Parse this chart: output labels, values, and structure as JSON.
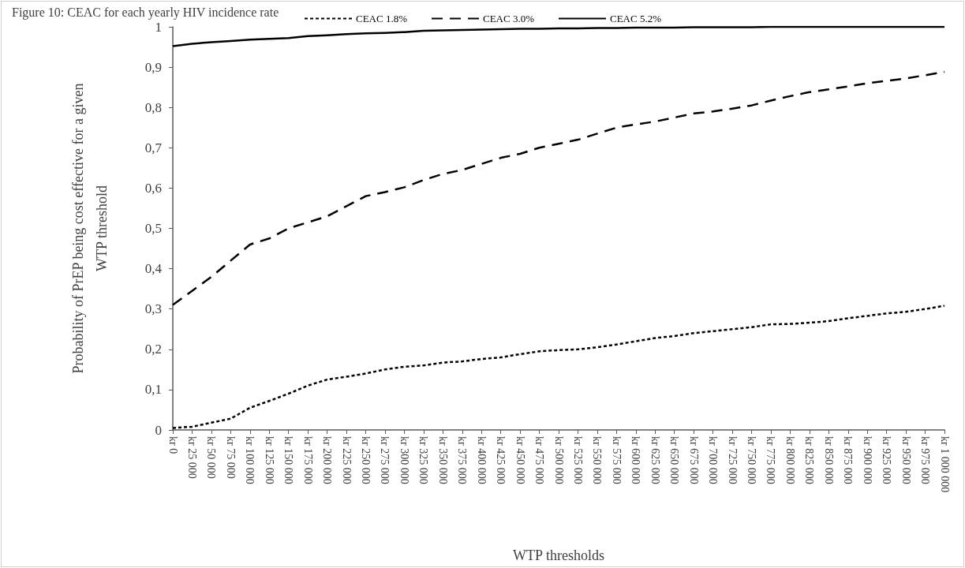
{
  "chart_data": {
    "type": "line",
    "title": "Figure 10: CEAC for each yearly HIV incidence rate",
    "xlabel": "WTP thresholds",
    "ylabel": "Probability of PrEP being cost effective for a given WTP threshold",
    "categories": [
      "kr 0",
      "kr 25 000",
      "kr 50 000",
      "kr 75 000",
      "kr 100 000",
      "kr 125 000",
      "kr 150 000",
      "kr 175 000",
      "kr 200 000",
      "kr 225 000",
      "kr 250 000",
      "kr 275 000",
      "kr 300 000",
      "kr 325 000",
      "kr 350 000",
      "kr 375 000",
      "kr 400 000",
      "kr 425 000",
      "kr 450 000",
      "kr 475 000",
      "kr 500 000",
      "kr 525 000",
      "kr 550 000",
      "kr 575 000",
      "kr 600 000",
      "kr 625 000",
      "kr 650 000",
      "kr 675 000",
      "kr 700 000",
      "kr 725 000",
      "kr 750 000",
      "kr 775 000",
      "kr 800 000",
      "kr 825 000",
      "kr 850 000",
      "kr 875 000",
      "kr 900 000",
      "kr 925 000",
      "kr 950 000",
      "kr 975 000",
      "kr 1 000 000"
    ],
    "series": [
      {
        "name": "CEAC 1.8%",
        "color": "#000000",
        "line_style": "dotted",
        "values": [
          0.005,
          0.008,
          0.018,
          0.028,
          0.055,
          0.072,
          0.09,
          0.11,
          0.125,
          0.132,
          0.14,
          0.15,
          0.157,
          0.16,
          0.167,
          0.17,
          0.176,
          0.18,
          0.188,
          0.195,
          0.198,
          0.2,
          0.205,
          0.212,
          0.22,
          0.228,
          0.233,
          0.24,
          0.245,
          0.25,
          0.255,
          0.262,
          0.263,
          0.266,
          0.27,
          0.277,
          0.283,
          0.289,
          0.293,
          0.3,
          0.308
        ]
      },
      {
        "name": "CEAC 3.0%",
        "color": "#000000",
        "line_style": "dashed",
        "values": [
          0.31,
          0.345,
          0.38,
          0.42,
          0.46,
          0.475,
          0.5,
          0.515,
          0.53,
          0.555,
          0.58,
          0.59,
          0.602,
          0.62,
          0.635,
          0.645,
          0.66,
          0.675,
          0.685,
          0.7,
          0.71,
          0.72,
          0.735,
          0.75,
          0.758,
          0.765,
          0.775,
          0.785,
          0.79,
          0.797,
          0.805,
          0.817,
          0.828,
          0.838,
          0.845,
          0.852,
          0.86,
          0.866,
          0.872,
          0.88,
          0.888
        ]
      },
      {
        "name": "CEAC 5.2%",
        "color": "#000000",
        "line_style": "solid",
        "values": [
          0.952,
          0.958,
          0.962,
          0.965,
          0.968,
          0.97,
          0.972,
          0.977,
          0.979,
          0.982,
          0.984,
          0.985,
          0.987,
          0.99,
          0.991,
          0.992,
          0.993,
          0.994,
          0.995,
          0.995,
          0.996,
          0.996,
          0.997,
          0.997,
          0.998,
          0.998,
          0.998,
          0.999,
          0.999,
          0.999,
          0.999,
          1,
          1,
          1,
          1,
          1,
          1,
          1,
          1,
          1,
          1
        ]
      }
    ],
    "ylim": [
      0,
      1
    ],
    "yticks": [
      0,
      {
        "value": 0.1,
        "label": "0,1"
      },
      {
        "value": 0.2,
        "label": "0,2"
      },
      {
        "value": 0.3,
        "label": "0,3"
      },
      {
        "value": 0.4,
        "label": "0,4"
      },
      {
        "value": 0.5,
        "label": "0,5"
      },
      {
        "value": 0.6,
        "label": "0,6"
      },
      {
        "value": 0.7,
        "label": "0,7"
      },
      {
        "value": 0.8,
        "label": "0,8"
      },
      {
        "value": 0.9,
        "label": "0,9"
      },
      1
    ],
    "grid": false,
    "legend": "top",
    "marker": "none"
  }
}
